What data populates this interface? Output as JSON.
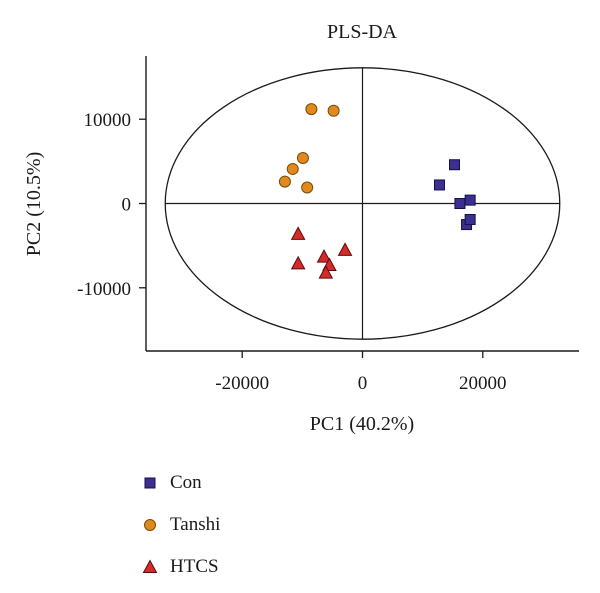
{
  "chart_data": {
    "type": "scatter",
    "title": "PLS-DA",
    "xlabel": "PC1 (40.2%)",
    "ylabel": "PC2 (10.5%)",
    "xlim": [
      -36000,
      36000
    ],
    "ylim": [
      -17500,
      17500
    ],
    "xticks": [
      -20000,
      0,
      20000
    ],
    "yticks": [
      -10000,
      0,
      10000
    ],
    "xtick_labels": [
      "-20000",
      "0",
      "20000"
    ],
    "ytick_labels": [
      "-10000",
      "0",
      "10000"
    ],
    "grid": false,
    "legend_position": "bottom-left",
    "ellipse": {
      "rx": 32800,
      "ry": 16100
    },
    "series": [
      {
        "name": "Con",
        "marker": "square",
        "color": "#3b2f8f",
        "x": [
          15300,
          12800,
          16200,
          17900,
          17300,
          17900
        ],
        "y": [
          4600,
          2200,
          0,
          400,
          -2500,
          -1900
        ]
      },
      {
        "name": "Tanshi",
        "marker": "circle",
        "color": "#e08a1e",
        "x": [
          -8500,
          -4800,
          -9900,
          -11600,
          -12900,
          -9200
        ],
        "y": [
          11200,
          11000,
          5400,
          4100,
          2600,
          1900
        ]
      },
      {
        "name": "HTCS",
        "marker": "triangle",
        "color": "#d42a2a",
        "x": [
          -10700,
          -10700,
          -6400,
          -2900,
          -5500,
          -6100
        ],
        "y": [
          -3600,
          -7100,
          -6300,
          -5500,
          -7300,
          -8200
        ]
      }
    ]
  }
}
